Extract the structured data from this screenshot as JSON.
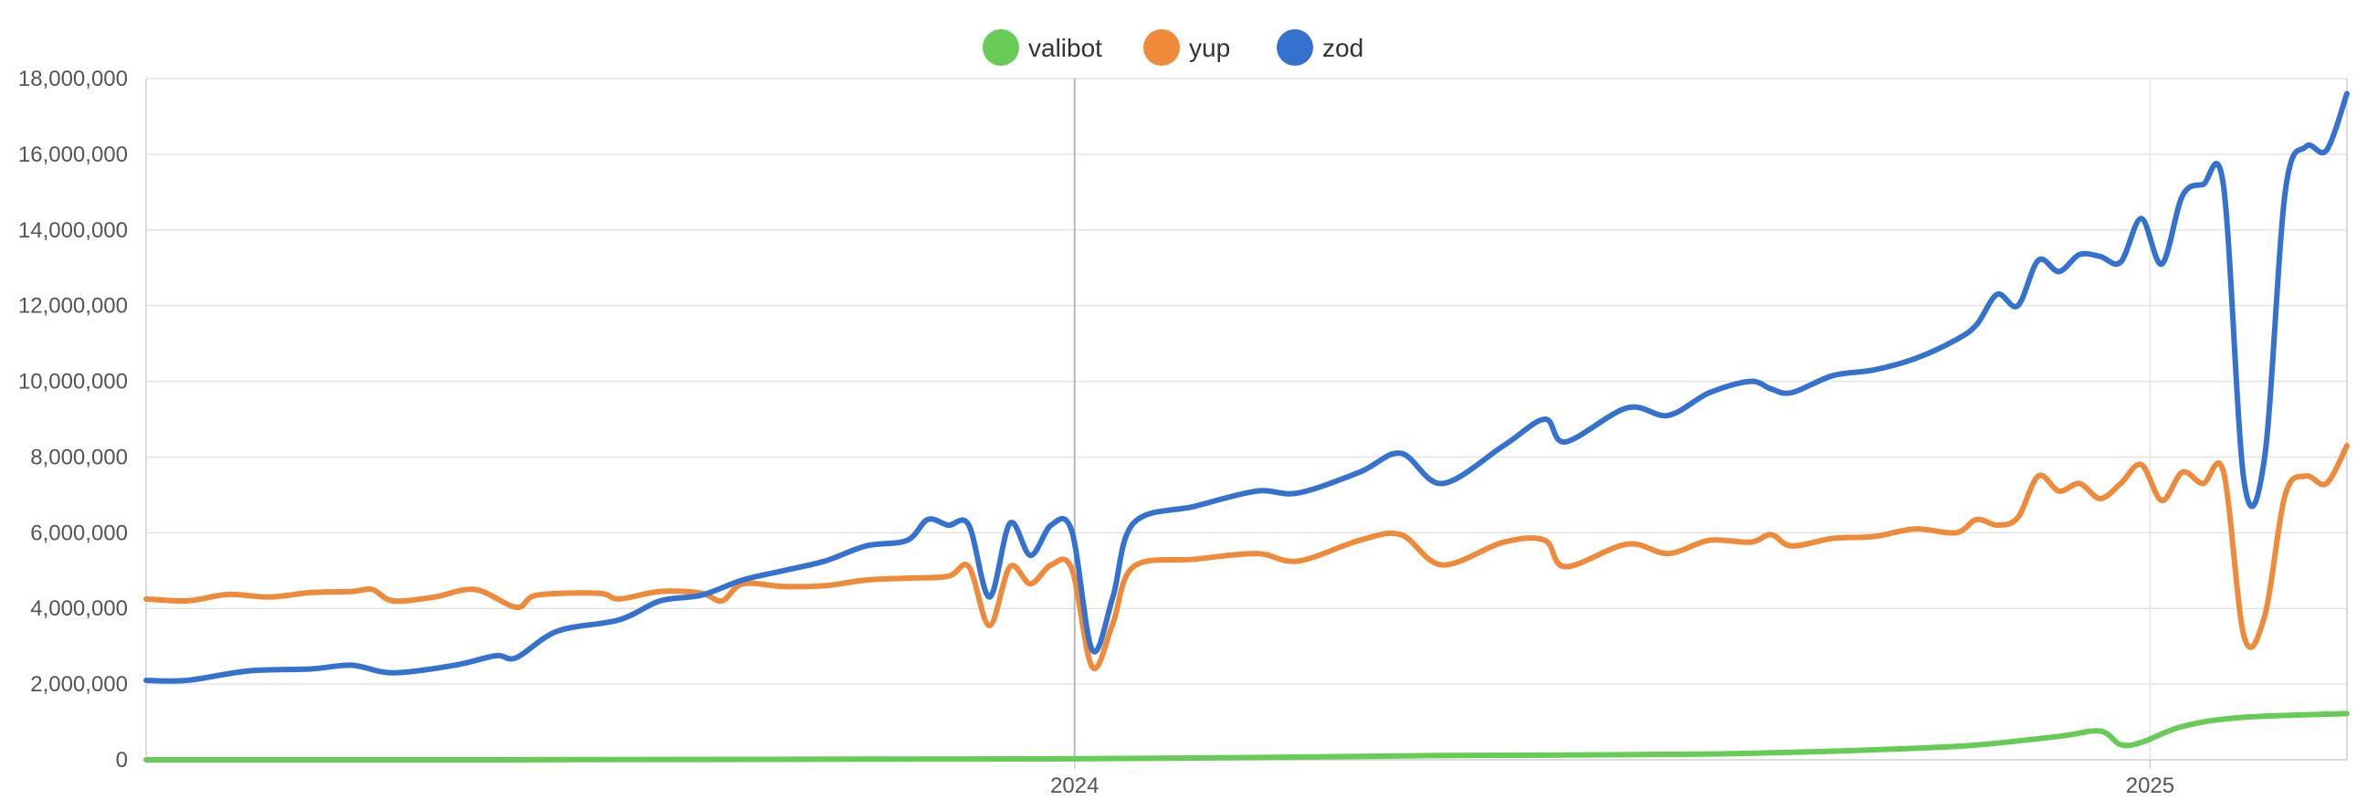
{
  "chart_data": {
    "type": "line",
    "title": "",
    "xlabel": "",
    "ylabel": "",
    "x_range": [
      "2023-02-19",
      "2025-03-09"
    ],
    "ylim": [
      0,
      18000000
    ],
    "y_ticks": [
      0,
      2000000,
      4000000,
      6000000,
      8000000,
      10000000,
      12000000,
      14000000,
      16000000,
      18000000
    ],
    "y_tick_labels": [
      "0",
      "2,000,000",
      "4,000,000",
      "6,000,000",
      "8,000,000",
      "10,000,000",
      "12,000,000",
      "14,000,000",
      "16,000,000",
      "18,000,000"
    ],
    "x_ticks": [
      "2024-01-01",
      "2025-01-01"
    ],
    "x_tick_labels": [
      "2024",
      "2025"
    ],
    "grid": true,
    "legend_position": "top-center",
    "series": [
      {
        "name": "valibot",
        "color": "#66cc55",
        "points": [
          [
            "2023-02-19",
            0
          ],
          [
            "2023-06-01",
            0
          ],
          [
            "2023-09-01",
            10000
          ],
          [
            "2023-11-01",
            20000
          ],
          [
            "2023-12-24",
            25000
          ],
          [
            "2024-03-01",
            60000
          ],
          [
            "2024-05-01",
            110000
          ],
          [
            "2024-06-01",
            120000
          ],
          [
            "2024-08-01",
            150000
          ],
          [
            "2024-09-01",
            200000
          ],
          [
            "2024-10-01",
            270000
          ],
          [
            "2024-11-01",
            380000
          ],
          [
            "2024-12-01",
            620000
          ],
          [
            "2024-12-15",
            760000
          ],
          [
            "2024-12-22",
            400000
          ],
          [
            "2024-12-29",
            460000
          ],
          [
            "2025-01-12",
            880000
          ],
          [
            "2025-02-01",
            1120000
          ],
          [
            "2025-03-09",
            1220000
          ]
        ]
      },
      {
        "name": "yup",
        "color": "#ef8a3a",
        "points": [
          [
            "2023-02-19",
            4250000
          ],
          [
            "2023-03-05",
            4200000
          ],
          [
            "2023-03-19",
            4370000
          ],
          [
            "2023-04-02",
            4300000
          ],
          [
            "2023-04-16",
            4420000
          ],
          [
            "2023-04-30",
            4450000
          ],
          [
            "2023-05-07",
            4500000
          ],
          [
            "2023-05-14",
            4200000
          ],
          [
            "2023-05-28",
            4300000
          ],
          [
            "2023-06-11",
            4500000
          ],
          [
            "2023-06-25",
            4030000
          ],
          [
            "2023-07-02",
            4350000
          ],
          [
            "2023-07-23",
            4400000
          ],
          [
            "2023-07-30",
            4250000
          ],
          [
            "2023-08-13",
            4450000
          ],
          [
            "2023-08-27",
            4400000
          ],
          [
            "2023-09-03",
            4200000
          ],
          [
            "2023-09-10",
            4650000
          ],
          [
            "2023-09-24",
            4580000
          ],
          [
            "2023-10-08",
            4600000
          ],
          [
            "2023-10-22",
            4750000
          ],
          [
            "2023-11-05",
            4800000
          ],
          [
            "2023-11-19",
            4850000
          ],
          [
            "2023-11-26",
            5100000
          ],
          [
            "2023-12-03",
            3550000
          ],
          [
            "2023-12-10",
            5100000
          ],
          [
            "2023-12-17",
            4650000
          ],
          [
            "2023-12-24",
            5150000
          ],
          [
            "2023-12-31",
            5050000
          ],
          [
            "2024-01-07",
            2450000
          ],
          [
            "2024-01-14",
            3600000
          ],
          [
            "2024-01-21",
            5100000
          ],
          [
            "2024-02-11",
            5300000
          ],
          [
            "2024-03-03",
            5450000
          ],
          [
            "2024-03-17",
            5250000
          ],
          [
            "2024-04-07",
            5800000
          ],
          [
            "2024-04-21",
            5950000
          ],
          [
            "2024-05-05",
            5150000
          ],
          [
            "2024-05-26",
            5750000
          ],
          [
            "2024-06-09",
            5800000
          ],
          [
            "2024-06-16",
            5100000
          ],
          [
            "2024-07-07",
            5700000
          ],
          [
            "2024-07-21",
            5450000
          ],
          [
            "2024-08-04",
            5800000
          ],
          [
            "2024-08-18",
            5750000
          ],
          [
            "2024-08-25",
            5950000
          ],
          [
            "2024-09-01",
            5650000
          ],
          [
            "2024-09-15",
            5850000
          ],
          [
            "2024-09-29",
            5900000
          ],
          [
            "2024-10-13",
            6100000
          ],
          [
            "2024-10-27",
            6000000
          ],
          [
            "2024-11-03",
            6350000
          ],
          [
            "2024-11-10",
            6200000
          ],
          [
            "2024-11-17",
            6400000
          ],
          [
            "2024-11-24",
            7500000
          ],
          [
            "2024-12-01",
            7100000
          ],
          [
            "2024-12-08",
            7300000
          ],
          [
            "2024-12-15",
            6900000
          ],
          [
            "2024-12-22",
            7300000
          ],
          [
            "2024-12-29",
            7800000
          ],
          [
            "2025-01-05",
            6850000
          ],
          [
            "2025-01-12",
            7600000
          ],
          [
            "2025-01-19",
            7300000
          ],
          [
            "2025-01-26",
            7600000
          ],
          [
            "2025-02-02",
            3250000
          ],
          [
            "2025-02-09",
            3800000
          ],
          [
            "2025-02-16",
            7000000
          ],
          [
            "2025-02-23",
            7500000
          ],
          [
            "2025-03-02",
            7300000
          ],
          [
            "2025-03-09",
            8300000
          ]
        ]
      },
      {
        "name": "zod",
        "color": "#3572d0",
        "points": [
          [
            "2023-02-19",
            2100000
          ],
          [
            "2023-03-05",
            2100000
          ],
          [
            "2023-03-26",
            2350000
          ],
          [
            "2023-04-16",
            2400000
          ],
          [
            "2023-04-30",
            2500000
          ],
          [
            "2023-05-14",
            2300000
          ],
          [
            "2023-06-04",
            2500000
          ],
          [
            "2023-06-18",
            2750000
          ],
          [
            "2023-06-25",
            2700000
          ],
          [
            "2023-07-09",
            3400000
          ],
          [
            "2023-07-30",
            3700000
          ],
          [
            "2023-08-13",
            4200000
          ],
          [
            "2023-08-27",
            4350000
          ],
          [
            "2023-09-10",
            4750000
          ],
          [
            "2023-09-24",
            5000000
          ],
          [
            "2023-10-08",
            5250000
          ],
          [
            "2023-10-22",
            5650000
          ],
          [
            "2023-11-05",
            5800000
          ],
          [
            "2023-11-12",
            6350000
          ],
          [
            "2023-11-19",
            6200000
          ],
          [
            "2023-11-26",
            6200000
          ],
          [
            "2023-12-03",
            4300000
          ],
          [
            "2023-12-10",
            6250000
          ],
          [
            "2023-12-17",
            5400000
          ],
          [
            "2023-12-24",
            6200000
          ],
          [
            "2023-12-31",
            6050000
          ],
          [
            "2024-01-07",
            2900000
          ],
          [
            "2024-01-14",
            4300000
          ],
          [
            "2024-01-21",
            6250000
          ],
          [
            "2024-02-11",
            6700000
          ],
          [
            "2024-03-03",
            7100000
          ],
          [
            "2024-03-17",
            7050000
          ],
          [
            "2024-04-07",
            7600000
          ],
          [
            "2024-04-21",
            8100000
          ],
          [
            "2024-05-05",
            7300000
          ],
          [
            "2024-05-26",
            8300000
          ],
          [
            "2024-06-09",
            9000000
          ],
          [
            "2024-06-16",
            8400000
          ],
          [
            "2024-07-07",
            9300000
          ],
          [
            "2024-07-21",
            9100000
          ],
          [
            "2024-08-04",
            9700000
          ],
          [
            "2024-08-18",
            10000000
          ],
          [
            "2024-08-25",
            9800000
          ],
          [
            "2024-09-01",
            9700000
          ],
          [
            "2024-09-15",
            10150000
          ],
          [
            "2024-09-29",
            10300000
          ],
          [
            "2024-10-13",
            10600000
          ],
          [
            "2024-10-27",
            11100000
          ],
          [
            "2024-11-03",
            11500000
          ],
          [
            "2024-11-10",
            12300000
          ],
          [
            "2024-11-17",
            12000000
          ],
          [
            "2024-11-24",
            13200000
          ],
          [
            "2024-12-01",
            12900000
          ],
          [
            "2024-12-08",
            13350000
          ],
          [
            "2024-12-15",
            13300000
          ],
          [
            "2024-12-22",
            13150000
          ],
          [
            "2024-12-29",
            14300000
          ],
          [
            "2025-01-05",
            13100000
          ],
          [
            "2025-01-12",
            14900000
          ],
          [
            "2025-01-19",
            15200000
          ],
          [
            "2025-01-26",
            15150000
          ],
          [
            "2025-02-02",
            7350000
          ],
          [
            "2025-02-09",
            8000000
          ],
          [
            "2025-02-16",
            15000000
          ],
          [
            "2025-02-23",
            16200000
          ],
          [
            "2025-03-02",
            16100000
          ],
          [
            "2025-03-09",
            17600000
          ]
        ]
      }
    ]
  }
}
